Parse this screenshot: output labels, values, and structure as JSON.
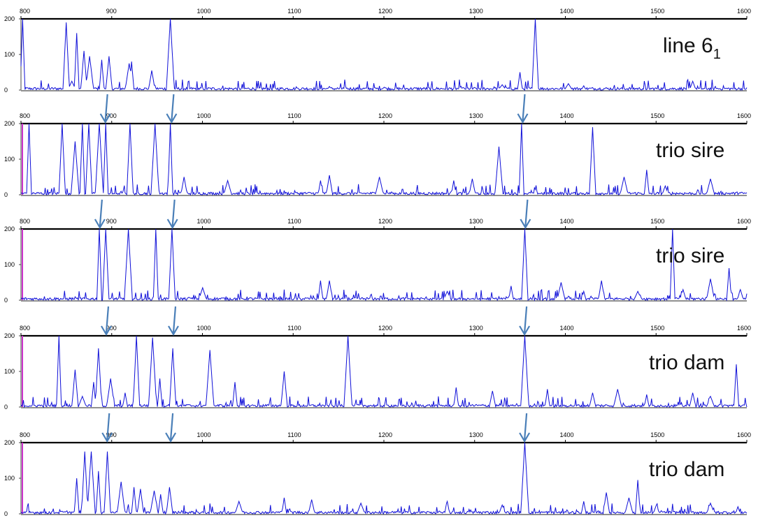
{
  "colors": {
    "trace": "#1010d8",
    "arrow": "#4a7fb8",
    "marker": "#cc33cc",
    "axis": "#000000"
  },
  "chart_data": {
    "type": "line",
    "x_range": [
      800,
      1600
    ],
    "x_ticks": [
      800,
      900,
      1000,
      1100,
      1200,
      1300,
      1400,
      1500,
      1600
    ],
    "y_range": [
      0,
      200
    ],
    "y_ticks": [
      0,
      100,
      200
    ],
    "panels": [
      {
        "label_main": "line 6",
        "label_sub": "1",
        "arrows": [],
        "marker": false,
        "peaks": [
          [
            802,
            200
          ],
          [
            850,
            190
          ],
          [
            856,
            25
          ],
          [
            861,
            160
          ],
          [
            869,
            110
          ],
          [
            876,
            95
          ],
          [
            889,
            85
          ],
          [
            897,
            95
          ],
          [
            919,
            75
          ],
          [
            922,
            80
          ],
          [
            944,
            55
          ],
          [
            965,
            200
          ],
          [
            1140,
            10
          ],
          [
            1200,
            8
          ],
          [
            1330,
            15
          ],
          [
            1350,
            50
          ],
          [
            1367,
            200
          ],
          [
            1403,
            18
          ],
          [
            1420,
            12
          ],
          [
            1540,
            25
          ]
        ]
      },
      {
        "label_main": "trio sire",
        "label_sub": "",
        "arrows": [
          893,
          966,
          1353
        ],
        "marker": true,
        "peaks": [
          [
            809,
            200
          ],
          [
            845,
            200
          ],
          [
            860,
            150
          ],
          [
            868,
            200
          ],
          [
            875,
            200
          ],
          [
            886,
            200
          ],
          [
            893,
            200
          ],
          [
            920,
            200
          ],
          [
            948,
            200
          ],
          [
            965,
            200
          ],
          [
            980,
            50
          ],
          [
            1028,
            40
          ],
          [
            1130,
            40
          ],
          [
            1140,
            55
          ],
          [
            1195,
            50
          ],
          [
            1277,
            40
          ],
          [
            1297,
            45
          ],
          [
            1327,
            135
          ],
          [
            1352,
            200
          ],
          [
            1430,
            190
          ],
          [
            1465,
            50
          ],
          [
            1490,
            70
          ],
          [
            1510,
            25
          ],
          [
            1560,
            45
          ]
        ]
      },
      {
        "label_main": "trio sire",
        "label_sub": "",
        "arrows": [
          887,
          967,
          1356
        ],
        "marker": true,
        "peaks": [
          [
            886,
            200
          ],
          [
            893,
            200
          ],
          [
            918,
            200
          ],
          [
            949,
            200
          ],
          [
            966,
            200
          ],
          [
            1000,
            35
          ],
          [
            1130,
            55
          ],
          [
            1140,
            55
          ],
          [
            1270,
            25
          ],
          [
            1340,
            40
          ],
          [
            1355,
            200
          ],
          [
            1395,
            50
          ],
          [
            1420,
            25
          ],
          [
            1440,
            55
          ],
          [
            1480,
            25
          ],
          [
            1518,
            200
          ],
          [
            1530,
            30
          ],
          [
            1560,
            60
          ],
          [
            1580,
            90
          ],
          [
            1593,
            30
          ]
        ]
      },
      {
        "label_main": "trio dam",
        "label_sub": "",
        "arrows": [
          894,
          968,
          1355
        ],
        "marker": true,
        "peaks": [
          [
            842,
            200
          ],
          [
            860,
            105
          ],
          [
            868,
            30
          ],
          [
            880,
            70
          ],
          [
            885,
            165
          ],
          [
            899,
            80
          ],
          [
            915,
            40
          ],
          [
            927,
            200
          ],
          [
            945,
            195
          ],
          [
            953,
            80
          ],
          [
            967,
            165
          ],
          [
            1008,
            160
          ],
          [
            1036,
            70
          ],
          [
            1090,
            100
          ],
          [
            1160,
            200
          ],
          [
            1280,
            55
          ],
          [
            1320,
            45
          ],
          [
            1355,
            200
          ],
          [
            1380,
            50
          ],
          [
            1430,
            40
          ],
          [
            1458,
            50
          ],
          [
            1490,
            35
          ],
          [
            1540,
            40
          ],
          [
            1560,
            30
          ],
          [
            1588,
            120
          ]
        ]
      },
      {
        "label_main": "trio dam",
        "label_sub": "",
        "arrows": [
          895,
          965,
          1355
        ],
        "marker": true,
        "peaks": [
          [
            861,
            100
          ],
          [
            870,
            175
          ],
          [
            877,
            175
          ],
          [
            885,
            120
          ],
          [
            895,
            175
          ],
          [
            910,
            90
          ],
          [
            925,
            75
          ],
          [
            932,
            70
          ],
          [
            947,
            65
          ],
          [
            954,
            55
          ],
          [
            964,
            75
          ],
          [
            1040,
            35
          ],
          [
            1090,
            45
          ],
          [
            1120,
            40
          ],
          [
            1175,
            30
          ],
          [
            1270,
            35
          ],
          [
            1330,
            25
          ],
          [
            1355,
            200
          ],
          [
            1420,
            35
          ],
          [
            1445,
            60
          ],
          [
            1470,
            45
          ],
          [
            1480,
            95
          ],
          [
            1500,
            25
          ],
          [
            1560,
            30
          ],
          [
            1590,
            20
          ]
        ]
      }
    ]
  }
}
